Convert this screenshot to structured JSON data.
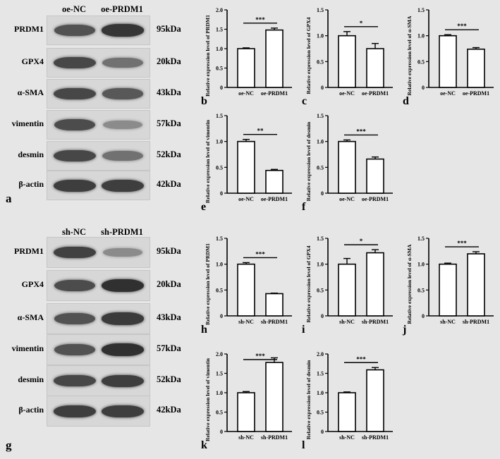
{
  "blot_top": {
    "letter": "a",
    "groups": [
      "oe-NC",
      "oe-PRDM1"
    ],
    "rows": [
      {
        "protein": "PRDM1",
        "kda": "95kDa",
        "intensity": [
          0.78,
          0.95
        ]
      },
      {
        "protein": "GPX4",
        "kda": "20kDa",
        "intensity": [
          0.85,
          0.6
        ]
      },
      {
        "protein": "α-SMA",
        "kda": "43kDa",
        "intensity": [
          0.85,
          0.75
        ]
      },
      {
        "protein": "vimentin",
        "kda": "57kDa",
        "intensity": [
          0.82,
          0.45
        ]
      },
      {
        "protein": "desmin",
        "kda": "52kDa",
        "intensity": [
          0.85,
          0.6
        ]
      },
      {
        "protein": "β-actin",
        "kda": "42kDa",
        "intensity": [
          0.9,
          0.9
        ]
      }
    ]
  },
  "blot_bottom": {
    "letter": "g",
    "groups": [
      "sh-NC",
      "sh-PRDM1"
    ],
    "rows": [
      {
        "protein": "PRDM1",
        "kda": "95kDa",
        "intensity": [
          0.88,
          0.45
        ]
      },
      {
        "protein": "GPX4",
        "kda": "20kDa",
        "intensity": [
          0.82,
          0.98
        ]
      },
      {
        "protein": "α-SMA",
        "kda": "43kDa",
        "intensity": [
          0.78,
          0.92
        ]
      },
      {
        "protein": "vimentin",
        "kda": "57kDa",
        "intensity": [
          0.78,
          0.98
        ]
      },
      {
        "protein": "desmin",
        "kda": "52kDa",
        "intensity": [
          0.85,
          0.9
        ]
      },
      {
        "protein": "β-actin",
        "kda": "42kDa",
        "intensity": [
          0.9,
          0.9
        ]
      }
    ]
  },
  "chart_data": [
    {
      "letter": "b",
      "type": "bar",
      "ylabel": "Relative expression level of PRDM1",
      "categories": [
        "oe-NC",
        "oe-PRDM1"
      ],
      "values": [
        1.0,
        1.48
      ],
      "errors": [
        0.02,
        0.05
      ],
      "ylim": [
        0,
        2.0
      ],
      "yticks": [
        "0",
        "0.5",
        "1.0",
        "1.5",
        "2.0"
      ],
      "significance": "***"
    },
    {
      "letter": "c",
      "type": "bar",
      "ylabel": "Relative expression level of GPX4",
      "categories": [
        "oe-NC",
        "oe-PRDM1"
      ],
      "values": [
        1.0,
        0.75
      ],
      "errors": [
        0.08,
        0.1
      ],
      "ylim": [
        0,
        1.5
      ],
      "yticks": [
        "0",
        "0.5",
        "1.0",
        "1.5"
      ],
      "significance": "*"
    },
    {
      "letter": "d",
      "type": "bar",
      "ylabel": "Relative expression level of α-SMA",
      "categories": [
        "oe-NC",
        "oe-PRDM1"
      ],
      "values": [
        1.0,
        0.74
      ],
      "errors": [
        0.02,
        0.03
      ],
      "ylim": [
        0,
        1.5
      ],
      "yticks": [
        "0",
        "0.5",
        "1.0",
        "1.5"
      ],
      "significance": "***"
    },
    {
      "letter": "e",
      "type": "bar",
      "ylabel": "Relative expression level of vimentin",
      "categories": [
        "oe-NC",
        "oe-PRDM1"
      ],
      "values": [
        1.0,
        0.44
      ],
      "errors": [
        0.04,
        0.02
      ],
      "ylim": [
        0,
        1.5
      ],
      "yticks": [
        "0",
        "0.5",
        "1.0",
        "1.5"
      ],
      "significance": "**"
    },
    {
      "letter": "f",
      "type": "bar",
      "ylabel": "Relative expression level of desmin",
      "categories": [
        "oe-NC",
        "oe-PRDM1"
      ],
      "values": [
        1.0,
        0.66
      ],
      "errors": [
        0.03,
        0.04
      ],
      "ylim": [
        0,
        1.5
      ],
      "yticks": [
        "0",
        "0.5",
        "1.0",
        "1.5"
      ],
      "significance": "***"
    },
    {
      "letter": "h",
      "type": "bar",
      "ylabel": "Relative expression level of PRDM1",
      "categories": [
        "sh-NC",
        "sh-PRDM1"
      ],
      "values": [
        1.0,
        0.43
      ],
      "errors": [
        0.03,
        0.01
      ],
      "ylim": [
        0,
        1.5
      ],
      "yticks": [
        "0",
        "0.5",
        "1.0",
        "1.5"
      ],
      "significance": "***"
    },
    {
      "letter": "i",
      "type": "bar",
      "ylabel": "Relative expression level of GPX4",
      "categories": [
        "sh-NC",
        "sh-PRDM1"
      ],
      "values": [
        1.0,
        1.22
      ],
      "errors": [
        0.11,
        0.06
      ],
      "ylim": [
        0,
        1.5
      ],
      "yticks": [
        "0",
        "0.5",
        "1.0",
        "1.5"
      ],
      "significance": "*"
    },
    {
      "letter": "j",
      "type": "bar",
      "ylabel": "Relative expression level of α-SMA",
      "categories": [
        "sh-NC",
        "sh-PRDM1"
      ],
      "values": [
        1.0,
        1.2
      ],
      "errors": [
        0.02,
        0.04
      ],
      "ylim": [
        0,
        1.5
      ],
      "yticks": [
        "0",
        "0.5",
        "1.0",
        "1.5"
      ],
      "significance": "***"
    },
    {
      "letter": "k",
      "type": "bar",
      "ylabel": "Relative expression level of vimentin",
      "categories": [
        "sh-NC",
        "sh-PRDM1"
      ],
      "values": [
        1.0,
        1.78
      ],
      "errors": [
        0.03,
        0.12
      ],
      "ylim": [
        0,
        2.0
      ],
      "yticks": [
        "0",
        "0.5",
        "1.0",
        "1.5",
        "2.0"
      ],
      "significance": "***"
    },
    {
      "letter": "l",
      "type": "bar",
      "ylabel": "Relative expression level of desmin",
      "categories": [
        "sh-NC",
        "sh-PRDM1"
      ],
      "values": [
        1.0,
        1.59
      ],
      "errors": [
        0.02,
        0.06
      ],
      "ylim": [
        0,
        2.0
      ],
      "yticks": [
        "0",
        "0.5",
        "1.0",
        "1.5",
        "2.0"
      ],
      "significance": "***"
    }
  ]
}
